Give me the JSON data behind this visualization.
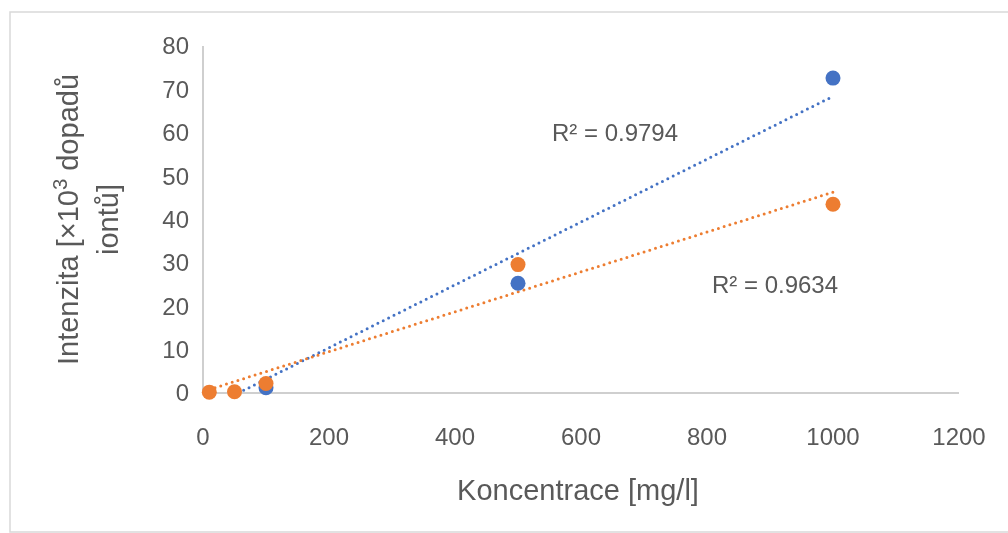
{
  "chart_data": {
    "type": "scatter",
    "xlabel": "Koncentrace [mg/l]",
    "ylabel": "Intenzita [×10$^{3}$ dopadů iontů]",
    "xlim": [
      0,
      1200
    ],
    "xticks": [
      0,
      200,
      400,
      600,
      800,
      1000,
      1200
    ],
    "ylim": [
      0,
      80
    ],
    "yticks": [
      0,
      10,
      20,
      30,
      40,
      50,
      60,
      70,
      80
    ],
    "grid": false,
    "marker": "circle",
    "series": [
      {
        "type": "line",
        "color": "#4472c4",
        "x": [
          56,
          1000
        ],
        "values": [
          0,
          68.4
        ],
        "line_style": "dotted",
        "marker": "none"
      },
      {
        "type": "line",
        "color": "#ed7d31",
        "x": [
          10,
          1000
        ],
        "values": [
          0.8,
          46.3
        ],
        "line_style": "dotted",
        "marker": "none"
      },
      {
        "color": "#4472c4",
        "x": [
          100,
          500,
          1000
        ],
        "values": [
          1.2,
          25.3,
          72.6
        ]
      },
      {
        "color": "#ed7d31",
        "x": [
          10,
          50,
          100,
          500,
          1000
        ],
        "values": [
          0.2,
          0.3,
          2.2,
          29.6,
          43.5
        ]
      }
    ],
    "annotations": [
      "R² = 0.9794",
      "R² = 0.9634"
    ]
  }
}
